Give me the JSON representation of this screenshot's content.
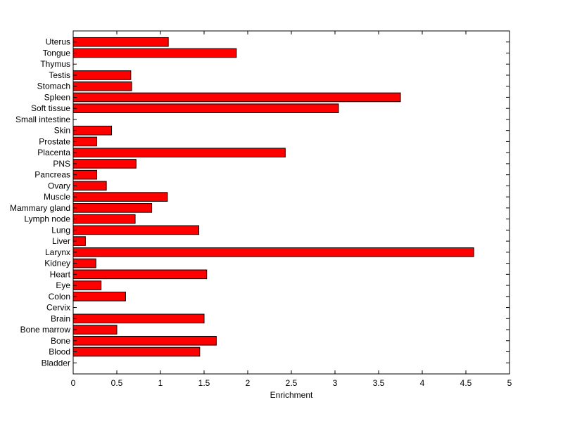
{
  "chart_data": {
    "type": "bar",
    "orientation": "horizontal",
    "title": "",
    "xlabel": "Enrichment",
    "ylabel": "",
    "xlim": [
      0,
      5
    ],
    "xticks": [
      "0",
      "0.5",
      "1",
      "1.5",
      "2",
      "2.5",
      "3",
      "3.5",
      "4",
      "4.5",
      "5"
    ],
    "grid": false,
    "bar_color": "#ff0000",
    "bar_edge_color": "#000000",
    "categories": [
      "Uterus",
      "Tongue",
      "Thymus",
      "Testis",
      "Stomach",
      "Spleen",
      "Soft tissue",
      "Small intestine",
      "Skin",
      "Prostate",
      "Placenta",
      "PNS",
      "Pancreas",
      "Ovary",
      "Muscle",
      "Mammary gland",
      "Lymph node",
      "Lung",
      "Liver",
      "Larynx",
      "Kidney",
      "Heart",
      "Eye",
      "Colon",
      "Cervix",
      "Brain",
      "Bone marrow",
      "Bone",
      "Blood",
      "Bladder"
    ],
    "values": [
      1.09,
      1.87,
      0,
      0.66,
      0.67,
      3.75,
      3.04,
      0,
      0.44,
      0.27,
      2.43,
      0.72,
      0.27,
      0.38,
      1.08,
      0.9,
      0.71,
      1.44,
      0.14,
      4.59,
      0.26,
      1.53,
      0.32,
      0.6,
      0,
      1.5,
      0.5,
      1.64,
      1.45,
      0
    ]
  }
}
